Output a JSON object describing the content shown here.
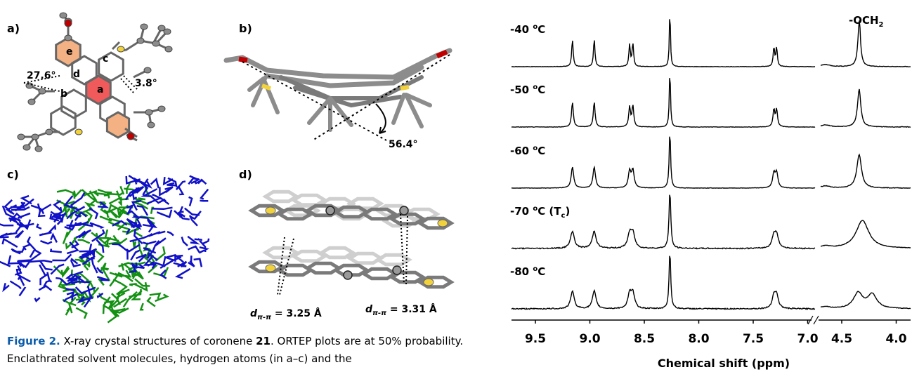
{
  "panels": {
    "a": {
      "label": "a)",
      "angles": [
        "27.6°",
        "3.8°"
      ],
      "rings": [
        "a",
        "b",
        "c",
        "d",
        "e"
      ]
    },
    "b": {
      "label": "b)",
      "angle": "56.4°"
    },
    "c": {
      "label": "c)"
    },
    "d": {
      "label": "d)",
      "distances": [
        {
          "symbol": "d",
          "subscript": "π-π",
          "value": " = 3.25 Å"
        },
        {
          "symbol": "d",
          "subscript": "π-π",
          "value": " = 3.31 Å"
        }
      ]
    }
  },
  "nmr": {
    "peak_label": {
      "main": "-OCH",
      "sub": "2"
    },
    "spectra": [
      {
        "main": "-40 ",
        "sup": "o",
        "rest": "C"
      },
      {
        "main": "-50 ",
        "sup": "o",
        "rest": "C"
      },
      {
        "main": "-60 ",
        "sup": "o",
        "rest": "C"
      },
      {
        "main": "-70 ",
        "sup": "o",
        "rest": "C (T",
        "sub": "c",
        "end": ")"
      },
      {
        "main": "-80 ",
        "sup": "o",
        "rest": "C"
      }
    ],
    "x_ticks": [
      "9.5",
      "9.0",
      "8.5",
      "8.0",
      "7.5",
      "7.0",
      "4.5",
      "4.0"
    ],
    "x_label": "Chemical shift (ppm)"
  },
  "caption": {
    "label": "Figure 2.",
    "text_1": " X-ray crystal structures of coronene ",
    "compound": "21",
    "text_2": ". ORTEP plots are at 50% probability. Enclathrated solvent molecules, hydrogen atoms (in a–c) and the"
  }
}
